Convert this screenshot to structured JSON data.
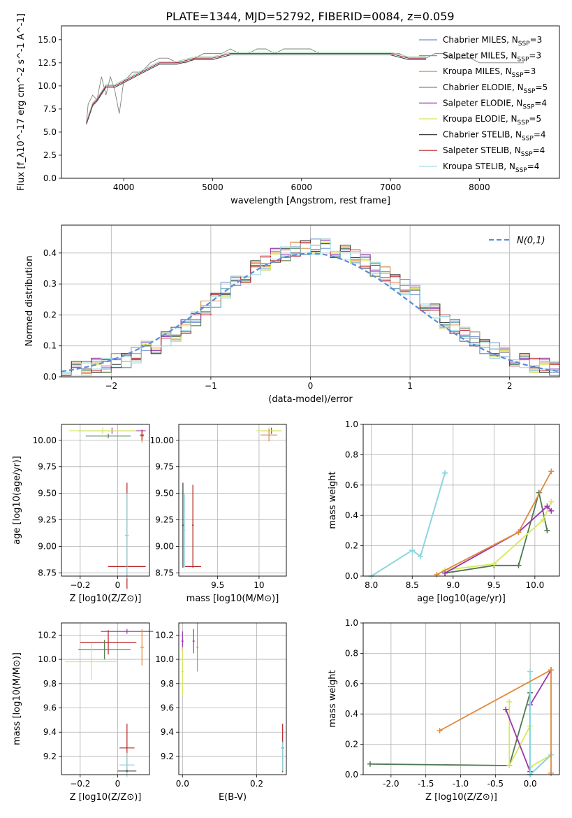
{
  "title": "PLATE=1344, MJD=52792, FIBERID=0084, z=0.059",
  "legend_series": [
    {
      "label": "Chabrier MILES, N",
      "sub": "SSP",
      "eq": "=3",
      "color": "#6e8fd6"
    },
    {
      "label": "Salpeter MILES, N",
      "sub": "SSP",
      "eq": "=3",
      "color": "#5fa4b3"
    },
    {
      "label": "Kroupa MILES, N",
      "sub": "SSP",
      "eq": "=3",
      "color": "#e08a3c"
    },
    {
      "label": "Chabrier ELODIE, N",
      "sub": "SSP",
      "eq": "=5",
      "color": "#4f7a4f"
    },
    {
      "label": "Salpeter ELODIE, N",
      "sub": "SSP",
      "eq": "=4",
      "color": "#9a35b0"
    },
    {
      "label": "Kroupa ELODIE, N",
      "sub": "SSP",
      "eq": "=5",
      "color": "#d8e85a"
    },
    {
      "label": "Chabrier STELIB, N",
      "sub": "SSP",
      "eq": "=4",
      "color": "#3a3a3a"
    },
    {
      "label": "Salpeter STELIB, N",
      "sub": "SSP",
      "eq": "=4",
      "color": "#b52020"
    },
    {
      "label": "Kroupa STELIB, N",
      "sub": "SSP",
      "eq": "=4",
      "color": "#8fd8e0"
    }
  ],
  "chart_data": [
    {
      "type": "line",
      "id": "spectrum",
      "xlabel": "wavelength [Angstrom, rest frame]",
      "ylabel": "Flux [f_λ10^-17 erg cm^-2 s^-1 A^-1]",
      "xlim": [
        3300,
        8900
      ],
      "ylim": [
        0,
        16.5
      ],
      "xticks": [
        4000,
        5000,
        6000,
        7000,
        8000
      ],
      "yticks": [
        0.0,
        2.5,
        5.0,
        7.5,
        10.0,
        12.5,
        15.0
      ],
      "data_color": "#808080",
      "data_x": [
        3580,
        3600,
        3650,
        3700,
        3750,
        3800,
        3850,
        3900,
        3950,
        4000,
        4100,
        4200,
        4300,
        4400,
        4500,
        4600,
        4700,
        4800,
        4900,
        5000,
        5100,
        5200,
        5300,
        5400,
        5500,
        5600,
        5700,
        5800,
        5900,
        6000,
        6100,
        6200,
        6300,
        6400,
        6500,
        6600,
        6700,
        6800,
        6900,
        7000,
        7100,
        7200,
        7300,
        7400,
        7500,
        7600,
        7700,
        7800,
        7900,
        8000,
        8100,
        8200,
        8300,
        8400,
        8500
      ],
      "data_y": [
        6,
        8,
        9,
        8.5,
        11,
        9,
        11,
        9.5,
        7,
        10.5,
        11.5,
        11.5,
        12.5,
        13,
        13,
        12.5,
        12.5,
        13,
        13.5,
        13.5,
        13.5,
        14,
        13.5,
        13.5,
        14,
        14,
        13.5,
        14,
        14,
        14,
        14,
        13.5,
        13.5,
        13.5,
        13.5,
        13.5,
        13.5,
        13.5,
        13.5,
        13.5,
        13.5,
        13,
        13,
        13,
        13.5,
        13.5,
        13,
        13,
        13,
        12.5,
        12.5,
        12.5,
        12.5,
        12.5,
        12.5
      ],
      "model_x": [
        3580,
        3650,
        3700,
        3800,
        3900,
        4000,
        4200,
        4400,
        4600,
        4800,
        5000,
        5200,
        5400,
        5600,
        5800,
        6000,
        6200,
        6400,
        6600,
        6800,
        7000,
        7200,
        7400
      ],
      "model_y": [
        6,
        8,
        8.5,
        10,
        10,
        10.5,
        11.5,
        12.5,
        12.5,
        13,
        13,
        13.5,
        13.5,
        13.5,
        13.5,
        13.5,
        13.5,
        13.5,
        13.5,
        13.5,
        13.5,
        13,
        13
      ]
    },
    {
      "type": "histogram",
      "id": "residuals",
      "xlabel": "(data-model)/error",
      "ylabel": "Normed distribution",
      "xlim": [
        -2.5,
        2.5
      ],
      "ylim": [
        0,
        0.49
      ],
      "xticks": [
        -2,
        -1,
        0,
        1,
        2
      ],
      "yticks": [
        0.0,
        0.1,
        0.2,
        0.3,
        0.4
      ],
      "legend": "N(0,1)",
      "gauss_color": "#5b8bd8",
      "bins": [
        -2.5,
        -2.4,
        -2.3,
        -2.2,
        -2.1,
        -2.0,
        -1.9,
        -1.8,
        -1.7,
        -1.6,
        -1.5,
        -1.4,
        -1.3,
        -1.2,
        -1.1,
        -1.0,
        -0.9,
        -0.8,
        -0.7,
        -0.6,
        -0.5,
        -0.4,
        -0.3,
        -0.2,
        -0.1,
        0.0,
        0.1,
        0.2,
        0.3,
        0.4,
        0.5,
        0.6,
        0.7,
        0.8,
        0.9,
        1.0,
        1.1,
        1.2,
        1.3,
        1.4,
        1.5,
        1.6,
        1.7,
        1.8,
        1.9,
        2.0,
        2.1,
        2.2,
        2.3,
        2.4
      ],
      "base_heights": [
        0.02,
        0.025,
        0.03,
        0.035,
        0.04,
        0.05,
        0.055,
        0.07,
        0.09,
        0.1,
        0.12,
        0.14,
        0.16,
        0.19,
        0.22,
        0.25,
        0.28,
        0.3,
        0.33,
        0.35,
        0.37,
        0.39,
        0.4,
        0.41,
        0.42,
        0.42,
        0.42,
        0.41,
        0.4,
        0.39,
        0.37,
        0.35,
        0.33,
        0.31,
        0.29,
        0.27,
        0.24,
        0.21,
        0.18,
        0.16,
        0.14,
        0.12,
        0.1,
        0.085,
        0.07,
        0.06,
        0.05,
        0.04,
        0.035,
        0.03
      ]
    },
    {
      "type": "scatter",
      "id": "z-age",
      "xlabel": "Z [log10(Z/Z⊙)]",
      "ylabel": "age [log10(age/yr)]",
      "xlim": [
        -0.3,
        0.17
      ],
      "ylim": [
        8.72,
        10.15
      ],
      "xticks": [
        -0.2,
        0.0
      ],
      "yticks": [
        8.75,
        9.0,
        9.25,
        9.5,
        9.75,
        10.0
      ]
    },
    {
      "type": "scatter",
      "id": "mass-age",
      "xlabel": "mass [log10(M/M⊙)]",
      "ylabel": "",
      "xlim": [
        9.03,
        10.33
      ],
      "ylim": [
        8.72,
        10.15
      ],
      "xticks": [
        9.5,
        10.0
      ],
      "yticks": [
        8.75,
        9.0,
        9.25,
        9.5,
        9.75,
        10.0
      ]
    },
    {
      "type": "line",
      "id": "age-weight",
      "xlabel": "age [log10(age/yr)]",
      "ylabel": "mass weight",
      "xlim": [
        7.9,
        10.3
      ],
      "ylim": [
        0,
        1.0
      ],
      "xticks": [
        8.0,
        8.5,
        9.0,
        9.5,
        10.0
      ],
      "yticks": [
        0.0,
        0.2,
        0.4,
        0.6,
        0.8,
        1.0
      ]
    },
    {
      "type": "scatter",
      "id": "z-mass",
      "xlabel": "Z [log10(Z/Z⊙)]",
      "ylabel": "mass [log10(M/M⊙)]",
      "xlim": [
        -0.3,
        0.17
      ],
      "ylim": [
        9.05,
        10.3
      ],
      "xticks": [
        -0.2,
        0.0
      ],
      "yticks": [
        9.2,
        9.4,
        9.6,
        9.8,
        10.0,
        10.2
      ]
    },
    {
      "type": "scatter",
      "id": "ebv-mass",
      "xlabel": "E(B-V)",
      "ylabel": "",
      "xlim": [
        -0.01,
        0.28
      ],
      "ylim": [
        9.05,
        10.3
      ],
      "xticks": [
        0.0,
        0.2
      ],
      "yticks": [
        9.2,
        9.4,
        9.6,
        9.8,
        10.0,
        10.2
      ]
    },
    {
      "type": "line",
      "id": "z-weight",
      "xlabel": "Z [log10(Z/Z⊙)]",
      "ylabel": "mass weight",
      "xlim": [
        -2.4,
        0.42
      ],
      "ylim": [
        0,
        1.0
      ],
      "xticks": [
        -2.0,
        -1.5,
        -1.0,
        -0.5,
        0.0
      ],
      "yticks": [
        0.0,
        0.2,
        0.4,
        0.6,
        0.8,
        1.0
      ]
    }
  ]
}
